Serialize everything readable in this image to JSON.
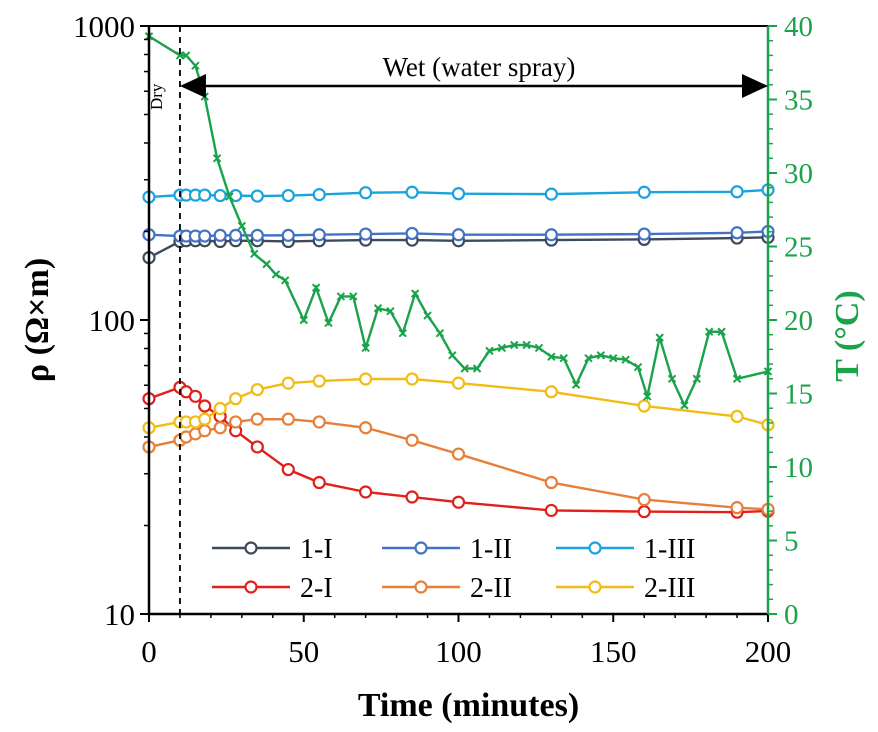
{
  "chart_data": {
    "type": "line",
    "title": "",
    "xlabel": "Time (minutes)",
    "ylabel": "ρ (Ω×m)",
    "y2label": "T (°C)",
    "xlim": [
      0,
      200
    ],
    "ylim": [
      10,
      1000
    ],
    "yscale": "log",
    "y2lim": [
      0,
      40
    ],
    "x_ticks": [
      "0",
      "50",
      "100",
      "150",
      "200"
    ],
    "y_ticks": [
      "10",
      "100",
      "1000"
    ],
    "y2_ticks": [
      "0",
      "5",
      "10",
      "15",
      "20",
      "25",
      "30",
      "35",
      "40"
    ],
    "annotations": {
      "dry_label": "Dry",
      "wet_label": "Wet (water spray)",
      "dry_line_x": 10,
      "wet_arrow_from": 10,
      "wet_arrow_to": 200
    },
    "legend_position": "bottom-center",
    "series": [
      {
        "name": "1-I",
        "color": "#3d4a5c",
        "x": [
          0,
          10,
          12,
          15,
          18,
          23,
          28,
          35,
          45,
          55,
          70,
          85,
          100,
          130,
          160,
          190,
          200
        ],
        "values": [
          163,
          185,
          186,
          186,
          186,
          185,
          186,
          186,
          185,
          186,
          187,
          187,
          186,
          187,
          188,
          190,
          191
        ]
      },
      {
        "name": "1-II",
        "color": "#4472c4",
        "x": [
          0,
          10,
          12,
          15,
          18,
          23,
          28,
          35,
          45,
          55,
          70,
          85,
          100,
          130,
          160,
          190,
          200
        ],
        "values": [
          195,
          193,
          193,
          193,
          193,
          194,
          194,
          194,
          194,
          195,
          196,
          197,
          195,
          195,
          196,
          198,
          200
        ]
      },
      {
        "name": "1-III",
        "color": "#1aa3dc",
        "x": [
          0,
          10,
          12,
          15,
          18,
          23,
          28,
          35,
          45,
          55,
          70,
          85,
          100,
          130,
          160,
          190,
          200
        ],
        "values": [
          262,
          266,
          266,
          266,
          266,
          265,
          265,
          264,
          265,
          267,
          271,
          272,
          269,
          268,
          272,
          273,
          277
        ]
      },
      {
        "name": "2-I",
        "color": "#e0201b",
        "x": [
          0,
          10,
          12,
          15,
          18,
          23,
          28,
          35,
          45,
          55,
          70,
          85,
          100,
          130,
          160,
          190,
          200
        ],
        "values": [
          54,
          59,
          57,
          55,
          51,
          47,
          42,
          37,
          31,
          28,
          26,
          25,
          24,
          22.5,
          22.3,
          22.2,
          22.4
        ]
      },
      {
        "name": "2-II",
        "color": "#e87f39",
        "x": [
          0,
          10,
          12,
          15,
          18,
          23,
          28,
          35,
          45,
          55,
          70,
          85,
          100,
          130,
          160,
          190,
          200
        ],
        "values": [
          37,
          39,
          40,
          41,
          42,
          43,
          45,
          46,
          46,
          45,
          43,
          39,
          35,
          28,
          24.5,
          23,
          22.7
        ]
      },
      {
        "name": "2-III",
        "color": "#f2bc14",
        "x": [
          0,
          10,
          12,
          15,
          18,
          23,
          28,
          35,
          45,
          55,
          70,
          85,
          100,
          130,
          160,
          190,
          200
        ],
        "values": [
          43,
          45,
          45,
          45,
          46,
          50,
          54,
          58,
          61,
          62,
          63,
          63,
          61,
          57,
          51,
          47,
          44
        ]
      },
      {
        "name": "T (°C)",
        "axis": "right",
        "color": "#1aa34a",
        "marker": "x",
        "x": [
          0,
          10,
          12,
          15,
          18,
          22,
          26,
          30,
          34,
          38,
          41,
          44,
          50,
          54,
          58,
          62,
          66,
          70,
          74,
          78,
          82,
          86,
          90,
          94,
          98,
          102,
          106,
          110,
          114,
          118,
          122,
          126,
          130,
          134,
          138,
          142,
          146,
          150,
          154,
          158,
          161,
          165,
          169,
          173,
          177,
          181,
          185,
          190,
          200
        ],
        "values": [
          39.3,
          38.0,
          38.0,
          37.3,
          35.2,
          31.0,
          28.4,
          26.4,
          24.5,
          23.8,
          23.1,
          22.7,
          20.0,
          22.2,
          19.8,
          21.6,
          21.6,
          18.1,
          20.8,
          20.6,
          19.1,
          21.8,
          20.3,
          19.1,
          17.6,
          16.7,
          16.7,
          17.9,
          18.1,
          18.3,
          18.3,
          18.1,
          17.5,
          17.4,
          15.6,
          17.4,
          17.6,
          17.4,
          17.3,
          16.8,
          14.8,
          18.8,
          16.0,
          14.2,
          16.0,
          19.2,
          19.2,
          16.0,
          16.5
        ]
      }
    ]
  }
}
